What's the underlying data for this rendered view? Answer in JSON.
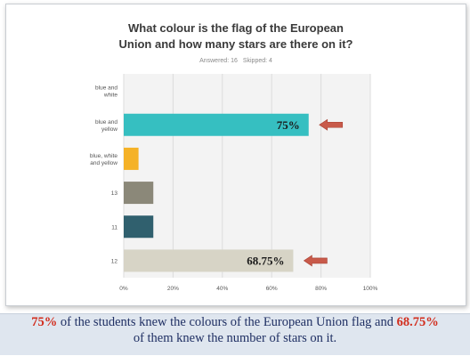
{
  "chart_data": {
    "type": "bar",
    "orientation": "horizontal",
    "title_lines": [
      "What colour is the flag of the European",
      "Union and how many stars are there on it?"
    ],
    "categories": [
      [
        "blue and",
        "white"
      ],
      [
        "blue and",
        "yellow"
      ],
      [
        "blue, white",
        "and yellow"
      ],
      [
        "13"
      ],
      [
        "11"
      ],
      [
        "12"
      ]
    ],
    "values": [
      0,
      75,
      6,
      12,
      12,
      68.75
    ],
    "colors": [
      "#3fbfbf",
      "#36bfc1",
      "#f5b227",
      "#8b8879",
      "#30606e",
      "#d7d4c6"
    ],
    "data_labels": [
      "",
      "75%",
      "",
      "",
      "",
      "68.75%"
    ],
    "arrows": [
      false,
      true,
      false,
      false,
      false,
      true
    ],
    "xlim": [
      0,
      100
    ],
    "xticks": [
      "0%",
      "20%",
      "40%",
      "60%",
      "80%",
      "100%"
    ],
    "xtick_values": [
      0,
      20,
      40,
      60,
      80,
      100
    ],
    "grid": true,
    "legend": "none"
  },
  "survey": {
    "answered": "Answered: 16",
    "skipped": "Skipped: 4"
  },
  "caption": {
    "hl1": "75%",
    "text1": " of the students knew the colours of the European Union flag and ",
    "hl2": "68.75%",
    "text2": "of them knew the number of stars on it."
  },
  "colors": {
    "accent_red": "#d22d1d",
    "caption_text": "#1f2f63",
    "caption_bg": "#dfe6ef",
    "arrow": "#c85a4a"
  }
}
